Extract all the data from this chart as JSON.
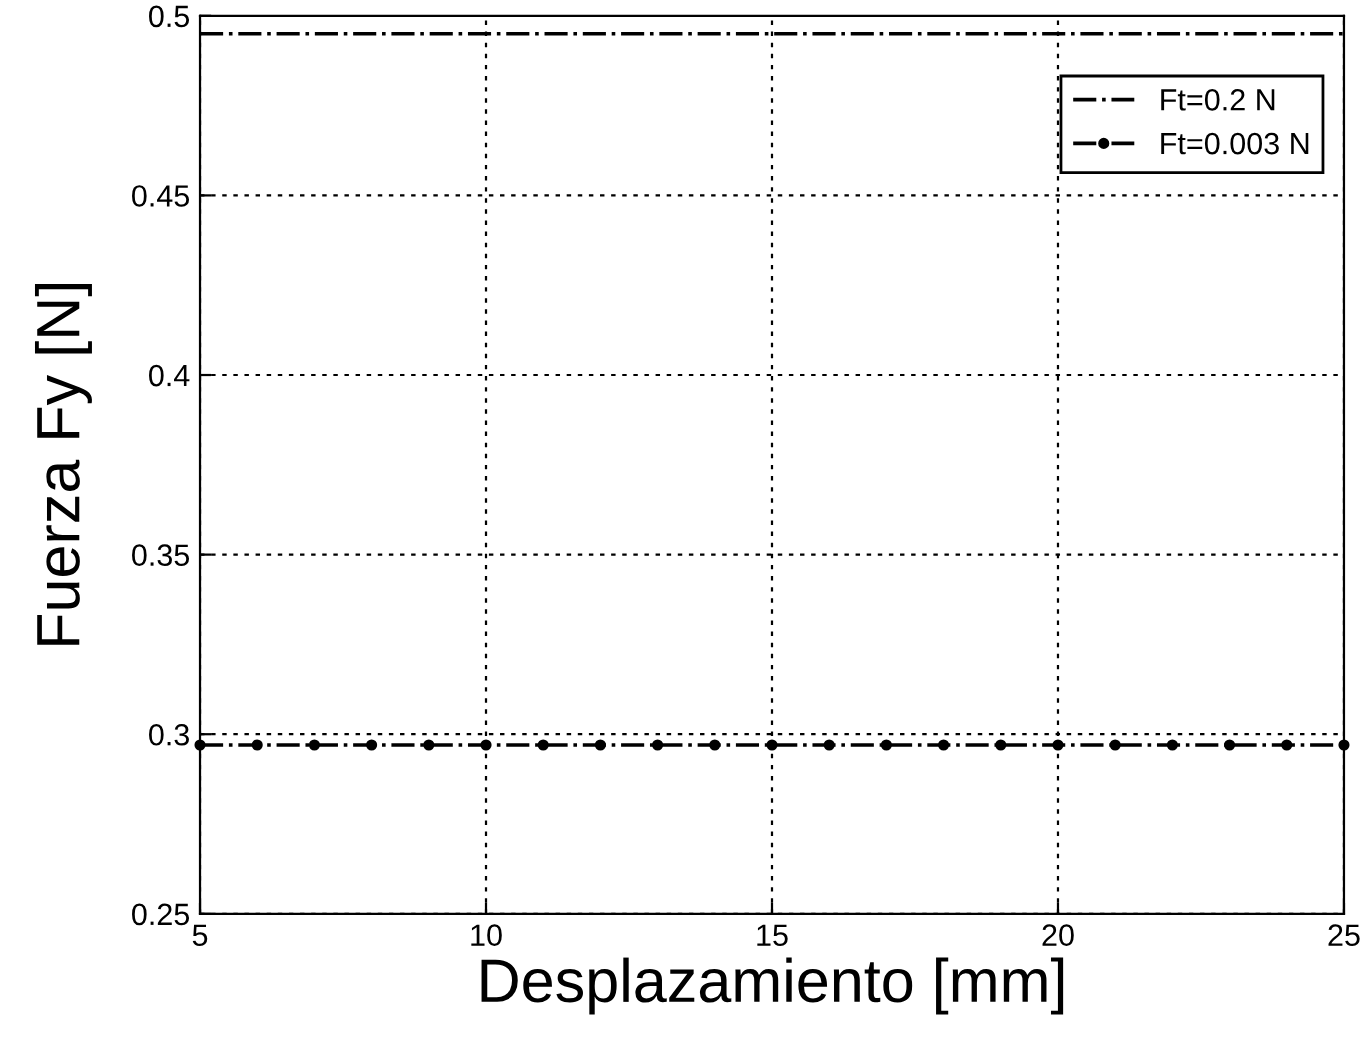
{
  "chart_data": {
    "type": "line",
    "xlabel": "Desplazamiento [mm]",
    "ylabel": "Fuerza Fy [N]",
    "series": [
      {
        "name": "Ft=0.2 N",
        "color": "#000000",
        "x": [
          5,
          25
        ],
        "values": [
          0.495,
          0.495
        ],
        "marker": "none",
        "line_style": "dashdot"
      },
      {
        "name": "Ft=0.003 N",
        "color": "#000000",
        "x": [
          5,
          6,
          7,
          8,
          9,
          10,
          11,
          12,
          13,
          14,
          15,
          16,
          17,
          18,
          19,
          20,
          21,
          22,
          23,
          24,
          25
        ],
        "values": [
          0.297,
          0.297,
          0.297,
          0.297,
          0.297,
          0.297,
          0.297,
          0.297,
          0.297,
          0.297,
          0.297,
          0.297,
          0.297,
          0.297,
          0.297,
          0.297,
          0.297,
          0.297,
          0.297,
          0.297,
          0.297
        ],
        "marker": "circle",
        "line_style": "dashdot"
      }
    ],
    "xlim": [
      5,
      25
    ],
    "xticks": [
      5,
      10,
      15,
      20,
      25
    ],
    "ylim": [
      0.25,
      0.5
    ],
    "yticks": [
      0.25,
      0.3,
      0.35,
      0.4,
      0.45,
      0.5
    ],
    "grid": true,
    "legend": "top right"
  }
}
